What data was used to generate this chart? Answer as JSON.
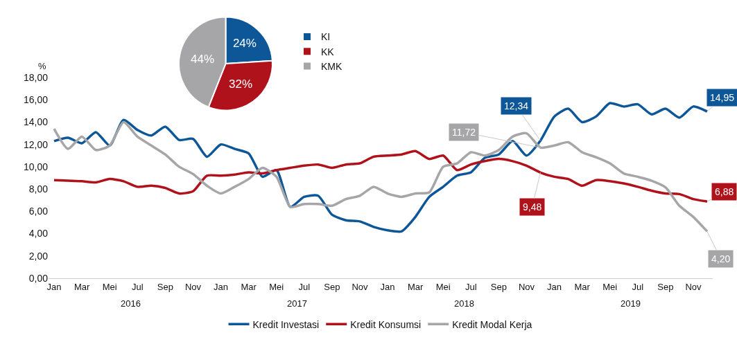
{
  "chart_data": [
    {
      "type": "pie",
      "categories": [
        "KI",
        "KK",
        "KMK"
      ],
      "values": [
        24,
        32,
        44
      ],
      "colors": [
        "#0d5697",
        "#b0121b",
        "#a6a6a8"
      ],
      "value_labels": [
        "24%",
        "32%",
        "44%"
      ],
      "legend": "right"
    },
    {
      "type": "line",
      "ylabel": "%",
      "categories": [
        "Jan",
        null,
        "Mar",
        null,
        "Mei",
        null,
        "Jul",
        null,
        "Sep",
        null,
        "Nov",
        null,
        "Jan",
        null,
        "Mar",
        null,
        "Mei",
        null,
        "Jul",
        null,
        "Sep",
        null,
        "Nov",
        null,
        "Jan",
        null,
        "Mar",
        null,
        "Mei",
        null,
        "Jul",
        null,
        "Sep",
        null,
        "Nov",
        null,
        "Jan",
        null,
        "Mar",
        null,
        "Mei",
        null,
        "Jul",
        null,
        "Sep",
        null,
        "Nov",
        null
      ],
      "ylim": [
        0,
        18
      ],
      "yticks": [
        {
          "value": 0,
          "label": "0,00"
        },
        {
          "value": 2,
          "label": "2,00"
        },
        {
          "value": 4,
          "label": "4,00"
        },
        {
          "value": 6,
          "label": "6,00"
        },
        {
          "value": 8,
          "label": "8,00"
        },
        {
          "value": 10,
          "label": "10,00"
        },
        {
          "value": 12,
          "label": "12,00"
        },
        {
          "value": 14,
          "label": "14,00"
        },
        {
          "value": 16,
          "label": "16,00"
        },
        {
          "value": 18,
          "label": "18,00"
        }
      ],
      "annotations": [
        "2016",
        "2017",
        "2018",
        "2019"
      ],
      "legend": "bottom",
      "grid": false,
      "series": [
        {
          "name": "Kredit Investasi",
          "color": "#0d5697",
          "values": [
            12.3,
            12.6,
            12.1,
            13.1,
            11.9,
            14.2,
            13.3,
            12.8,
            13.6,
            12.4,
            12.5,
            10.9,
            12.0,
            11.6,
            11.2,
            9.1,
            9.7,
            6.4,
            7.3,
            7.4,
            5.7,
            5.2,
            5.1,
            4.6,
            4.3,
            4.2,
            5.5,
            7.3,
            8.2,
            9.2,
            9.5,
            10.8,
            11.1,
            12.3,
            11.0,
            12.34,
            14.5,
            15.2,
            14.0,
            14.5,
            15.7,
            15.4,
            15.6,
            14.7,
            15.2,
            14.4,
            15.4,
            14.95
          ],
          "value_labels": [
            null,
            null,
            null,
            null,
            null,
            null,
            null,
            null,
            null,
            null,
            null,
            null,
            null,
            null,
            null,
            null,
            null,
            null,
            null,
            null,
            null,
            null,
            null,
            null,
            null,
            null,
            null,
            null,
            null,
            null,
            null,
            null,
            null,
            null,
            null,
            "12,34",
            null,
            null,
            null,
            null,
            null,
            null,
            null,
            null,
            null,
            null,
            null,
            "14,95"
          ]
        },
        {
          "name": "Kredit Konsumsi",
          "color": "#b0121b",
          "values": [
            8.8,
            8.75,
            8.7,
            8.6,
            8.9,
            8.7,
            8.2,
            8.3,
            8.1,
            7.6,
            7.8,
            9.2,
            9.2,
            9.3,
            9.5,
            9.4,
            9.7,
            9.9,
            10.1,
            10.2,
            9.9,
            10.2,
            10.3,
            10.9,
            11.0,
            11.1,
            11.4,
            10.7,
            11.0,
            9.7,
            10.2,
            10.5,
            10.7,
            10.5,
            10.1,
            9.48,
            9.1,
            8.9,
            8.3,
            8.8,
            8.7,
            8.5,
            8.2,
            7.85,
            7.6,
            7.55,
            7.1,
            6.88
          ],
          "value_labels": [
            null,
            null,
            null,
            null,
            null,
            null,
            null,
            null,
            null,
            null,
            null,
            null,
            null,
            null,
            null,
            null,
            null,
            null,
            null,
            null,
            null,
            null,
            null,
            null,
            null,
            null,
            null,
            null,
            null,
            null,
            null,
            null,
            null,
            null,
            null,
            "9,48",
            null,
            null,
            null,
            null,
            null,
            null,
            null,
            null,
            null,
            null,
            null,
            "6,88"
          ]
        },
        {
          "name": "Kredit Modal Kerja",
          "color": "#a6a6a8",
          "values": [
            13.4,
            11.6,
            12.7,
            11.5,
            11.9,
            14.0,
            12.7,
            11.9,
            11.1,
            10.0,
            9.35,
            8.3,
            7.6,
            8.2,
            8.9,
            9.9,
            9.1,
            6.4,
            6.65,
            6.65,
            6.5,
            7.1,
            7.4,
            8.2,
            7.6,
            7.3,
            7.6,
            7.7,
            10.0,
            10.3,
            11.3,
            11.0,
            11.5,
            12.7,
            13.0,
            11.72,
            11.9,
            12.2,
            11.3,
            10.85,
            10.3,
            9.4,
            9.1,
            8.75,
            8.15,
            6.5,
            5.5,
            4.2
          ],
          "value_labels": [
            null,
            null,
            null,
            null,
            null,
            null,
            null,
            null,
            null,
            null,
            null,
            null,
            null,
            null,
            null,
            null,
            null,
            null,
            null,
            null,
            null,
            null,
            null,
            null,
            null,
            null,
            null,
            null,
            null,
            null,
            null,
            null,
            null,
            null,
            null,
            "11,72",
            null,
            null,
            null,
            null,
            null,
            null,
            null,
            null,
            null,
            null,
            null,
            "4,20"
          ]
        }
      ]
    }
  ]
}
